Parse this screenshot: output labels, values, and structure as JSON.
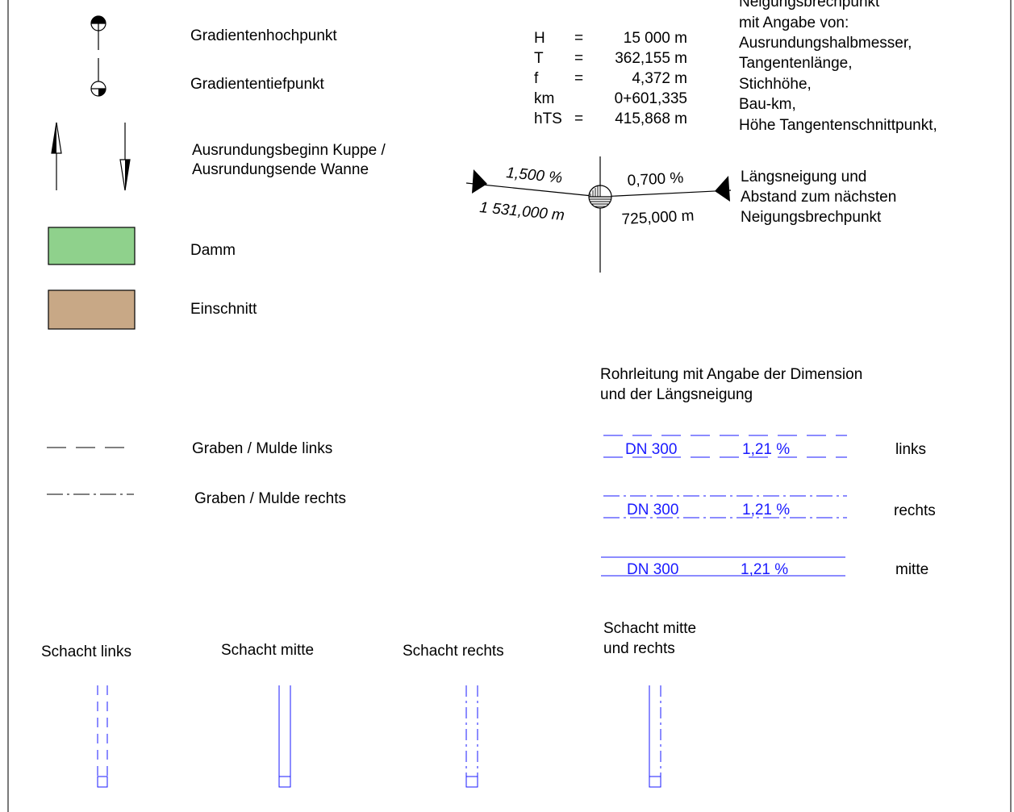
{
  "legend": {
    "hochpunkt": "Gradientenhochpunkt",
    "tiefpunkt": "Gradiententiefpunkt",
    "ausrundung_line1": "Ausrundungsbeginn Kuppe /",
    "ausrundung_line2": "Ausrundungsende Wanne",
    "damm": "Damm",
    "einschnitt": "Einschnitt",
    "graben_links": "Graben / Mulde links",
    "graben_rechts": "Graben / Mulde rechts"
  },
  "colors": {
    "damm": "#8fd18c",
    "einschnitt": "#c8a886",
    "pipe": "#1a1aff"
  },
  "breakpoint": {
    "params": [
      {
        "key": "H",
        "sep": "=",
        "value": "15 000 m"
      },
      {
        "key": "T",
        "sep": "=",
        "value": "362,155 m"
      },
      {
        "key": "f",
        "sep": "=",
        "value": "4,372 m"
      },
      {
        "key": "km",
        "sep": "",
        "value": "0+601,335"
      },
      {
        "key": "hTS",
        "sep": "=",
        "value": "415,868 m"
      }
    ],
    "left_slope": "1,500 %",
    "left_distance": "1 531,000 m",
    "right_slope": "0,700 %",
    "right_distance": "725,000 m",
    "desc_lines": [
      "Neigungsbrechpunkt",
      "mit Angabe von:",
      "Ausrundungshalbmesser,",
      "Tangentenlänge,",
      "Stichhöhe,",
      "Bau-km,",
      "Höhe Tangentenschnittpunkt,"
    ],
    "slope_desc_lines": [
      "Längsneigung und",
      "Abstand zum nächsten",
      "Neigungsbrechpunkt"
    ]
  },
  "pipes": {
    "title_line1": "Rohrleitung mit Angabe der Dimension",
    "title_line2": "und der Längsneigung",
    "rows": [
      {
        "dn": "DN 300",
        "slope": "1,21 %",
        "side": "links"
      },
      {
        "dn": "DN 300",
        "slope": "1,21 %",
        "side": "rechts"
      },
      {
        "dn": "DN 300",
        "slope": "1,21 %",
        "side": "mitte"
      }
    ]
  },
  "shafts": {
    "links": "Schacht links",
    "mitte": "Schacht mitte",
    "rechts": "Schacht rechts",
    "mitte_rechts_line1": "Schacht mitte",
    "mitte_rechts_line2": "und rechts"
  }
}
